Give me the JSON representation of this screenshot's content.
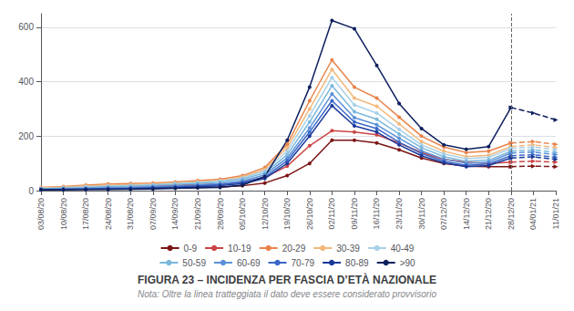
{
  "chart_data": {
    "type": "line",
    "title": "FIGURA 23 – INCIDENZA PER FASCIA D’ETÀ NAZIONALE",
    "subtitle": "Nota: Oltre la linea tratteggiata il dato deve essere considerato provvisorio",
    "categories": [
      "03/08/20",
      "10/08/20",
      "17/08/20",
      "24/08/20",
      "31/08/20",
      "07/09/20",
      "14/09/20",
      "21/09/20",
      "28/09/20",
      "05/10/20",
      "12/10/20",
      "19/10/20",
      "26/10/20",
      "02/11/20",
      "09/11/20",
      "16/11/20",
      "23/11/20",
      "30/11/20",
      "07/12/20",
      "14/12/20",
      "21/12/20",
      "28/12/20",
      "04/01/21",
      "11/01/21"
    ],
    "vline": "28/12/20",
    "series": [
      {
        "name": "0-9",
        "color": "#7B1515",
        "marker": "circle",
        "values": [
          5,
          6,
          7,
          8,
          8,
          9,
          10,
          12,
          13,
          18,
          28,
          55,
          100,
          185,
          185,
          175,
          150,
          120,
          100,
          90,
          88,
          88,
          90,
          88
        ]
      },
      {
        "name": "10-19",
        "color": "#CC4444",
        "marker": "circle",
        "values": [
          8,
          10,
          13,
          16,
          17,
          18,
          20,
          22,
          24,
          32,
          48,
          90,
          165,
          220,
          215,
          205,
          175,
          140,
          115,
          105,
          100,
          105,
          108,
          105
        ]
      },
      {
        "name": "20-29",
        "color": "#E8834A",
        "marker": "circle",
        "values": [
          12,
          15,
          20,
          24,
          26,
          28,
          32,
          37,
          42,
          55,
          85,
          170,
          330,
          480,
          380,
          340,
          270,
          200,
          160,
          140,
          145,
          175,
          180,
          170
        ]
      },
      {
        "name": "30-39",
        "color": "#F2B87A",
        "marker": "circle",
        "values": [
          10,
          13,
          17,
          20,
          22,
          24,
          28,
          33,
          38,
          50,
          78,
          158,
          300,
          445,
          340,
          310,
          245,
          180,
          145,
          125,
          130,
          162,
          168,
          158
        ]
      },
      {
        "name": "40-49",
        "color": "#A8D0E8",
        "marker": "circle",
        "values": [
          8,
          10,
          14,
          17,
          19,
          22,
          26,
          30,
          35,
          46,
          72,
          145,
          275,
          415,
          315,
          285,
          225,
          168,
          135,
          117,
          122,
          155,
          160,
          150
        ]
      },
      {
        "name": "50-59",
        "color": "#7AB8DC",
        "marker": "circle",
        "values": [
          7,
          9,
          11,
          14,
          16,
          19,
          23,
          27,
          31,
          42,
          65,
          132,
          252,
          385,
          290,
          262,
          208,
          158,
          125,
          108,
          112,
          145,
          150,
          140
        ]
      },
      {
        "name": "60-69",
        "color": "#5A90D8",
        "marker": "circle",
        "values": [
          5,
          6,
          8,
          10,
          11,
          14,
          17,
          21,
          25,
          35,
          58,
          120,
          230,
          355,
          268,
          242,
          192,
          146,
          116,
          100,
          105,
          138,
          142,
          132
        ]
      },
      {
        "name": "70-79",
        "color": "#3A68C8",
        "marker": "circle",
        "values": [
          4,
          5,
          6,
          8,
          9,
          11,
          14,
          18,
          22,
          30,
          50,
          110,
          215,
          330,
          252,
          228,
          178,
          136,
          108,
          93,
          98,
          128,
          132,
          122
        ]
      },
      {
        "name": "80-89",
        "color": "#1A3A9A",
        "marker": "circle",
        "values": [
          3,
          4,
          5,
          6,
          7,
          9,
          11,
          14,
          18,
          26,
          44,
          100,
          200,
          312,
          238,
          215,
          168,
          128,
          102,
          88,
          92,
          120,
          124,
          115
        ]
      },
      {
        "name": ">90",
        "color": "#0D1F5E",
        "marker": "circle",
        "values": [
          3,
          3,
          4,
          4,
          5,
          6,
          8,
          10,
          12,
          20,
          52,
          185,
          380,
          625,
          595,
          460,
          320,
          228,
          168,
          152,
          162,
          305,
          285,
          260
        ]
      }
    ],
    "ylim": [
      0,
      650
    ],
    "yticks": [
      0,
      200,
      400,
      600
    ],
    "grid": true,
    "legend": "bottom"
  }
}
